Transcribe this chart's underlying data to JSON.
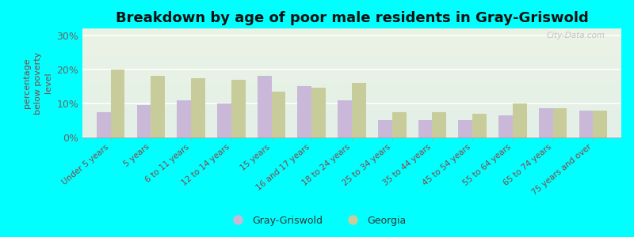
{
  "title": "Breakdown by age of poor male residents in Gray-Griswold",
  "ylabel": "percentage\nbelow poverty\nlevel",
  "categories": [
    "Under 5 years",
    "5 years",
    "6 to 11 years",
    "12 to 14 years",
    "15 years",
    "16 and 17 years",
    "18 to 24 years",
    "25 to 34 years",
    "35 to 44 years",
    "45 to 54 years",
    "55 to 64 years",
    "65 to 74 years",
    "75 years and over"
  ],
  "gray_griswold": [
    7.5,
    9.5,
    11.0,
    10.0,
    18.0,
    15.0,
    11.0,
    5.0,
    5.0,
    5.0,
    6.5,
    8.5,
    8.0
  ],
  "georgia": [
    20.0,
    18.0,
    17.5,
    17.0,
    13.5,
    14.5,
    16.0,
    7.5,
    7.5,
    7.0,
    10.0,
    8.5,
    8.0
  ],
  "bar_color_gg": "#c9b8d8",
  "bar_color_ga": "#c8cc9a",
  "plot_bg": "#eef5e8",
  "outer_bg": "#00ffff",
  "ylim": [
    0,
    32
  ],
  "yticks": [
    0,
    10,
    20,
    30
  ],
  "ytick_labels": [
    "0%",
    "10%",
    "20%",
    "30%"
  ],
  "title_fontsize": 13,
  "tick_label_color": "#884444",
  "tick_label_fontsize": 7.5,
  "ylabel_color": "#884444",
  "legend_labels": [
    "Gray-Griswold",
    "Georgia"
  ],
  "watermark": "City-Data.com"
}
